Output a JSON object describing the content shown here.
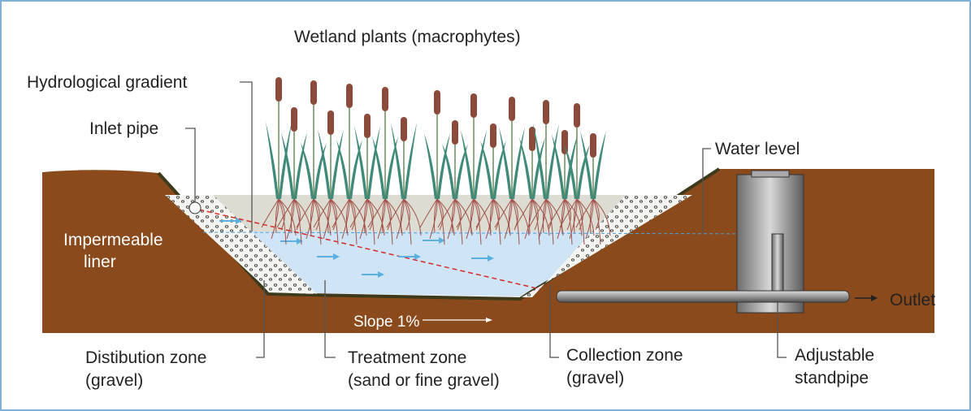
{
  "title": "Wetland plants (macrophytes)",
  "labels": {
    "hydrological_gradient": "Hydrological gradient",
    "inlet_pipe": "Inlet pipe",
    "water_level": "Water level",
    "impermeable_liner": [
      "Impermeable",
      "liner"
    ],
    "outlet": "Outlet",
    "slope": "Slope 1%",
    "distribution_zone": [
      "Distibution zone",
      "(gravel)"
    ],
    "treatment_zone": [
      "Treatment zone",
      "(sand or fine gravel)"
    ],
    "collection_zone": [
      "Collection zone",
      "(gravel)"
    ],
    "adjustable_standpipe": [
      "Adjustable",
      "standpipe"
    ]
  }
}
